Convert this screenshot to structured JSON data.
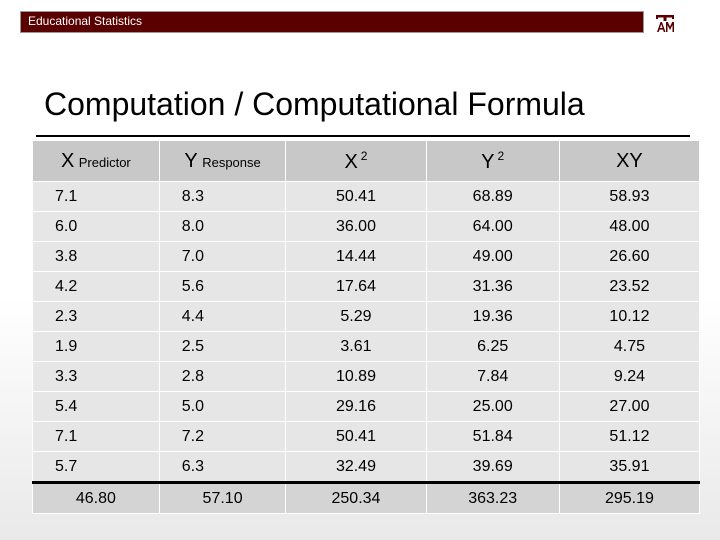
{
  "header": {
    "title": "Educational Statistics",
    "logo_icon": "tamu-logo-icon",
    "bar_color": "#5a0000"
  },
  "slide": {
    "title": "Computation / Computational Formula"
  },
  "table": {
    "columns": [
      {
        "var": "X",
        "sub": "Predictor",
        "sup": ""
      },
      {
        "var": "Y",
        "sub": "Response",
        "sup": ""
      },
      {
        "var": "X",
        "sub": "",
        "sup": "2"
      },
      {
        "var": "Y",
        "sub": "",
        "sup": "2"
      },
      {
        "var": "XY",
        "sub": "",
        "sup": ""
      }
    ],
    "rows": [
      [
        "7.1",
        "8.3",
        "50.41",
        "68.89",
        "58.93"
      ],
      [
        "6.0",
        "8.0",
        "36.00",
        "64.00",
        "48.00"
      ],
      [
        "3.8",
        "7.0",
        "14.44",
        "49.00",
        "26.60"
      ],
      [
        "4.2",
        "5.6",
        "17.64",
        "31.36",
        "23.52"
      ],
      [
        "2.3",
        "4.4",
        "5.29",
        "19.36",
        "10.12"
      ],
      [
        "1.9",
        "2.5",
        "3.61",
        "6.25",
        "4.75"
      ],
      [
        "3.3",
        "2.8",
        "10.89",
        "7.84",
        "9.24"
      ],
      [
        "5.4",
        "5.0",
        "29.16",
        "25.00",
        "27.00"
      ],
      [
        "7.1",
        "7.2",
        "50.41",
        "51.84",
        "51.12"
      ],
      [
        "5.7",
        "6.3",
        "32.49",
        "39.69",
        "35.91"
      ]
    ],
    "totals": [
      "46.80",
      "57.10",
      "250.34",
      "363.23",
      "295.19"
    ]
  }
}
